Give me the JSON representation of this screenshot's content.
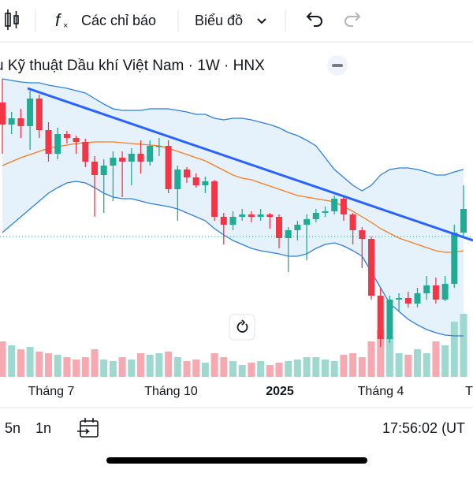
{
  "toolbar": {
    "indicators": "Các chỉ báo",
    "chart_type": "Biểu đồ"
  },
  "legend": {
    "title": "ụ Kỹ thuật Dầu khí Việt Nam · 1W · HNX"
  },
  "chart": {
    "type": "candlestick",
    "ylim": [
      0,
      360
    ],
    "volume_ylim": [
      0,
      100
    ],
    "up_color": "#22ab94",
    "down_color": "#f23645",
    "up_volume_color": "#9fd8cf",
    "down_volume_color": "#f7a9b1",
    "open": [
      330,
      302,
      310,
      300,
      335,
      295,
      265,
      290,
      285,
      280,
      255,
      238,
      250,
      260,
      255,
      265,
      255,
      275,
      275,
      220,
      245,
      235,
      225,
      230,
      185,
      175,
      185,
      188,
      185,
      188,
      185,
      158,
      168,
      175,
      182,
      190,
      192,
      208,
      188,
      168,
      157,
      85,
      30,
      80,
      82,
      75,
      88,
      98,
      80,
      100,
      165
    ],
    "high": [
      360,
      318,
      322,
      345,
      340,
      305,
      298,
      294,
      288,
      284,
      262,
      258,
      268,
      268,
      272,
      282,
      282,
      285,
      282,
      250,
      248,
      240,
      236,
      232,
      190,
      192,
      195,
      192,
      195,
      190,
      188,
      172,
      180,
      188,
      195,
      198,
      212,
      212,
      190,
      172,
      160,
      95,
      85,
      88,
      90,
      95,
      110,
      108,
      110,
      175,
      225
    ],
    "low": [
      265,
      290,
      285,
      270,
      285,
      255,
      258,
      278,
      265,
      248,
      185,
      190,
      205,
      210,
      225,
      240,
      250,
      262,
      215,
      180,
      228,
      222,
      215,
      180,
      150,
      168,
      180,
      178,
      180,
      170,
      145,
      115,
      155,
      130,
      178,
      185,
      188,
      180,
      150,
      120,
      80,
      20,
      25,
      65,
      70,
      70,
      80,
      75,
      78,
      95,
      160
    ],
    "close": [
      302,
      310,
      300,
      335,
      295,
      265,
      290,
      285,
      280,
      255,
      238,
      250,
      260,
      255,
      265,
      255,
      275,
      275,
      220,
      245,
      235,
      225,
      230,
      185,
      175,
      185,
      188,
      185,
      188,
      185,
      158,
      168,
      175,
      182,
      190,
      192,
      208,
      188,
      168,
      157,
      85,
      30,
      80,
      82,
      75,
      88,
      98,
      80,
      100,
      165,
      195
    ],
    "volume": [
      45,
      40,
      35,
      38,
      32,
      30,
      28,
      25,
      22,
      25,
      35,
      22,
      20,
      25,
      22,
      30,
      28,
      30,
      32,
      25,
      20,
      22,
      18,
      30,
      25,
      20,
      15,
      18,
      20,
      15,
      18,
      20,
      22,
      25,
      25,
      22,
      20,
      28,
      30,
      25,
      45,
      60,
      50,
      30,
      28,
      35,
      30,
      45,
      40,
      70,
      80
    ],
    "bb_upper": [
      360,
      358,
      356,
      355,
      355,
      352,
      350,
      348,
      345,
      342,
      335,
      328,
      322,
      320,
      320,
      320,
      322,
      322,
      322,
      320,
      318,
      315,
      315,
      310,
      308,
      310,
      310,
      308,
      305,
      302,
      298,
      292,
      288,
      282,
      275,
      260,
      245,
      235,
      225,
      218,
      225,
      238,
      245,
      247,
      247,
      245,
      242,
      238,
      238,
      242,
      245
    ],
    "bb_basis": [
      250,
      255,
      260,
      264,
      268,
      272,
      274,
      276,
      278,
      279,
      280,
      280,
      280,
      279,
      278,
      277,
      276,
      275,
      272,
      268,
      264,
      260,
      256,
      250,
      244,
      238,
      234,
      232,
      228,
      224,
      220,
      216,
      212,
      210,
      208,
      206,
      204,
      198,
      192,
      185,
      178,
      170,
      164,
      158,
      154,
      150,
      146,
      142,
      140,
      140,
      142
    ],
    "bb_lower": [
      165,
      175,
      185,
      195,
      205,
      215,
      222,
      228,
      230,
      228,
      222,
      215,
      210,
      208,
      208,
      205,
      202,
      200,
      198,
      195,
      190,
      185,
      180,
      170,
      162,
      155,
      150,
      145,
      142,
      140,
      138,
      135,
      135,
      138,
      145,
      150,
      152,
      148,
      142,
      135,
      115,
      95,
      75,
      65,
      55,
      48,
      42,
      38,
      35,
      34,
      34
    ],
    "x_labels": [
      "Tháng 7",
      "Tháng 10",
      "2025",
      "Tháng 4",
      "T"
    ]
  },
  "bottom_bar": {
    "range_5y": "5n",
    "range_1y": "1n",
    "clock": "17:56:02 (UT"
  }
}
